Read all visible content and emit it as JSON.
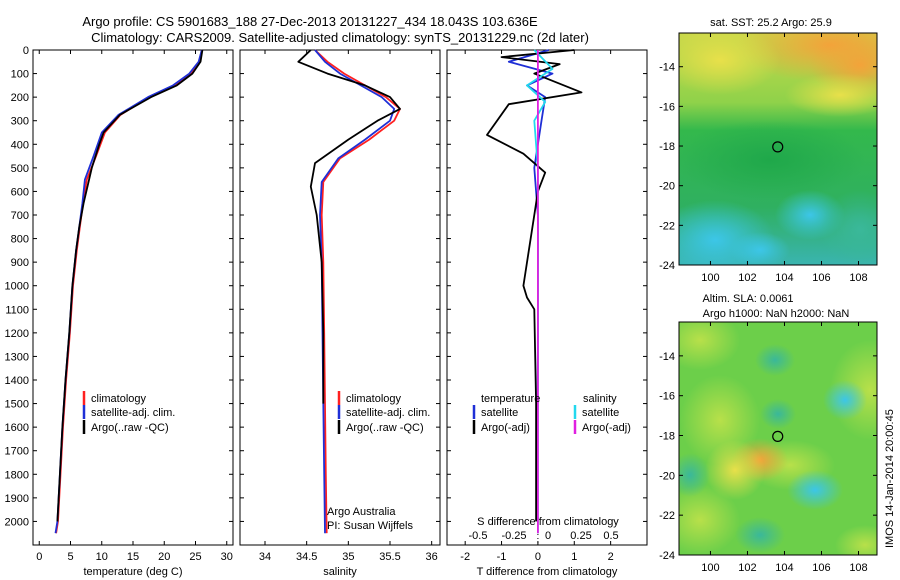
{
  "header": {
    "line1": "Argo profile: CS 5901683_188 27-Dec-2013 20131227_434 18.043S 103.636E",
    "line2": "Climatology: CARS2009. Satellite-adjusted climatology: synTS_20131229.nc (2d later)"
  },
  "footer": {
    "imos_stamp": "IMOS 14-Jan-2014 20:00:45"
  },
  "colors": {
    "climatology": "#ff2020",
    "satellite_adj": "#1f2fd6",
    "argo": "#000000",
    "satellite_salinity": "#22d8ee",
    "argo_salinity_adj": "#e020e0"
  },
  "chart_data": [
    {
      "id": "temperature",
      "type": "line",
      "xlabel": "temperature (deg C)",
      "ylabel": "",
      "xlim": [
        -1,
        31
      ],
      "ylim": [
        2100,
        0
      ],
      "xticks": [
        0,
        5,
        10,
        15,
        20,
        25,
        30
      ],
      "yticks": [
        0,
        100,
        200,
        300,
        400,
        500,
        600,
        700,
        800,
        900,
        1000,
        1100,
        1200,
        1300,
        1400,
        1500,
        1600,
        1700,
        1800,
        1900,
        2000
      ],
      "legend": {
        "placement": "lower-center",
        "entries": [
          "climatology",
          "satellite-adj. clim.",
          "Argo(..raw -QC)"
        ]
      },
      "series": [
        {
          "name": "climatology",
          "color": "#ff2020",
          "x": [
            26.0,
            25.6,
            24.2,
            21.6,
            17.6,
            13.0,
            10.5,
            9.1,
            7.6,
            7.0,
            6.5,
            6.0,
            5.4,
            4.9,
            4.3,
            3.8,
            3.4,
            3.0,
            2.7
          ],
          "y": [
            0,
            50,
            100,
            150,
            200,
            275,
            350,
            450,
            550,
            650,
            750,
            850,
            1000,
            1200,
            1400,
            1600,
            1800,
            2000,
            2050
          ]
        },
        {
          "name": "satellite-adj. clim.",
          "color": "#1f2fd6",
          "x": [
            26.0,
            25.5,
            24.0,
            21.4,
            17.4,
            12.7,
            10.0,
            8.7,
            7.3,
            6.9,
            6.4,
            5.9,
            5.3,
            4.8,
            4.2,
            3.7,
            3.3,
            2.9,
            2.6
          ],
          "y": [
            0,
            50,
            100,
            150,
            200,
            275,
            350,
            450,
            550,
            650,
            750,
            850,
            1000,
            1200,
            1400,
            1600,
            1800,
            2000,
            2050
          ]
        },
        {
          "name": "Argo(..raw -QC)",
          "color": "#000000",
          "x": [
            26.1,
            25.8,
            24.5,
            22.0,
            17.9,
            12.9,
            10.3,
            9.6,
            8.4,
            7.1,
            6.4,
            5.9,
            5.3,
            4.8,
            4.2,
            3.7,
            3.3,
            2.9
          ],
          "y": [
            0,
            50,
            100,
            150,
            200,
            275,
            350,
            400,
            500,
            650,
            750,
            850,
            1000,
            1200,
            1400,
            1600,
            1800,
            2000
          ]
        }
      ]
    },
    {
      "id": "salinity",
      "type": "line",
      "xlabel": "salinity",
      "ylabel": "",
      "xlim": [
        33.7,
        36.1
      ],
      "ylim": [
        2100,
        0
      ],
      "xticks": [
        34,
        34.5,
        35,
        35.5,
        36
      ],
      "legend": {
        "placement": "lower-center",
        "entries": [
          "climatology",
          "satellite-adj. clim.",
          "Argo(..raw -QC)"
        ]
      },
      "annotation": {
        "line1": "Argo Australia",
        "line2": "PI: Susan Wijffels"
      },
      "series": [
        {
          "name": "climatology",
          "color": "#ff2020",
          "x": [
            34.6,
            34.75,
            34.95,
            35.2,
            35.45,
            35.62,
            35.55,
            35.25,
            34.9,
            34.7,
            34.68,
            34.7,
            34.71,
            34.72,
            34.73,
            34.74
          ],
          "y": [
            0,
            50,
            100,
            150,
            200,
            250,
            300,
            380,
            460,
            560,
            700,
            900,
            1200,
            1500,
            1800,
            2050
          ]
        },
        {
          "name": "satellite-adj. clim.",
          "color": "#1f2fd6",
          "x": [
            34.6,
            34.72,
            34.9,
            35.15,
            35.4,
            35.55,
            35.5,
            35.2,
            34.88,
            34.68,
            34.66,
            34.68,
            34.69,
            34.7,
            34.71,
            34.72
          ],
          "y": [
            0,
            50,
            100,
            150,
            200,
            250,
            300,
            380,
            460,
            560,
            700,
            900,
            1200,
            1500,
            1800,
            2050
          ]
        },
        {
          "name": "Argo(..raw -QC)",
          "color": "#000000",
          "x": [
            34.55,
            34.4,
            34.75,
            35.2,
            35.5,
            35.62,
            35.35,
            35.0,
            34.6,
            34.55,
            34.62,
            34.68,
            34.7,
            34.7
          ],
          "y": [
            0,
            50,
            100,
            150,
            200,
            250,
            300,
            380,
            480,
            580,
            700,
            900,
            1200,
            1500
          ]
        }
      ]
    },
    {
      "id": "difference",
      "type": "line",
      "xlabel": "T difference from climatology",
      "top_label": "S difference from climatology",
      "ylabel": "",
      "xlim": [
        -2.5,
        3
      ],
      "ylim": [
        2100,
        0
      ],
      "xticks": [
        -2,
        -1,
        0,
        1,
        2
      ],
      "top_ticks": [
        "-0.5",
        "-0.25",
        "0",
        "0.25",
        "0.5"
      ],
      "legend": {
        "placement": "lower-center",
        "group_titles": [
          "temperature",
          "salinity"
        ],
        "entries": [
          "satellite",
          "Argo(-adj)",
          "satellite",
          "Argo(-adj)"
        ]
      },
      "series": [
        {
          "name": "temperature satellite",
          "color": "#1f2fd6",
          "x": [
            0.3,
            -0.8,
            0.4,
            -0.3,
            0.2,
            0.1,
            -0.1,
            0.0,
            0.0,
            0.0,
            -0.02
          ],
          "y": [
            0,
            50,
            100,
            150,
            200,
            300,
            500,
            700,
            900,
            1200,
            2000
          ]
        },
        {
          "name": "temperature Argo(-adj)",
          "color": "#000000",
          "x": [
            1.0,
            -1.0,
            0.6,
            -0.1,
            1.2,
            -0.8,
            -1.4,
            -0.4,
            0.2,
            0.0,
            -0.1,
            -0.4,
            -0.3,
            -0.1,
            -0.05,
            -0.05
          ],
          "y": [
            0,
            30,
            60,
            100,
            180,
            230,
            360,
            440,
            520,
            600,
            700,
            1000,
            1050,
            1100,
            1500,
            2000
          ]
        },
        {
          "name": "salinity satellite",
          "color": "#22d8ee",
          "x": [
            -0.1,
            0.4,
            -0.3,
            0.2,
            -0.1,
            0.0,
            0.0,
            0.0,
            0.0
          ],
          "y": [
            0,
            80,
            150,
            220,
            300,
            500,
            900,
            1500,
            2050
          ]
        },
        {
          "name": "salinity Argo(-adj)",
          "color": "#e020e0",
          "x": [
            0.0,
            0.0
          ],
          "y": [
            0,
            2050
          ]
        }
      ]
    },
    {
      "id": "sst-map",
      "type": "heatmap",
      "title": "sat. SST: 25.2 Argo: 25.9",
      "xlim": [
        98.3,
        109
      ],
      "ylim": [
        -24,
        -12.3
      ],
      "xticks": [
        100,
        102,
        104,
        106,
        108
      ],
      "yticks": [
        -14,
        -16,
        -18,
        -20,
        -22,
        -24
      ],
      "marker": {
        "lon": 103.636,
        "lat": -18.043
      }
    },
    {
      "id": "sla-map",
      "type": "heatmap",
      "title_line1": "Altim. SLA: 0.0061",
      "title_line2": "Argo h1000: NaN h2000: NaN",
      "xlim": [
        98.3,
        109
      ],
      "ylim": [
        -24,
        -12.3
      ],
      "xticks": [
        100,
        102,
        104,
        106,
        108
      ],
      "yticks": [
        -14,
        -16,
        -18,
        -20,
        -22,
        -24
      ],
      "marker": {
        "lon": 103.636,
        "lat": -18.043
      }
    }
  ]
}
